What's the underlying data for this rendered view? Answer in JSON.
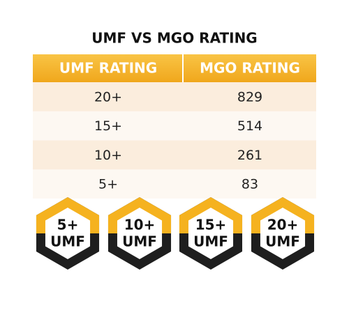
{
  "title": "UMF VS MGO RATING",
  "table": {
    "header": [
      "UMF RATING",
      "MGO RATING"
    ],
    "rows": [
      [
        "20+",
        829
      ],
      [
        "15+",
        514
      ],
      [
        "10+",
        261
      ],
      [
        "5+",
        83
      ]
    ]
  },
  "badges": [
    {
      "rating": "5+",
      "label": "UMF"
    },
    {
      "rating": "10+",
      "label": "UMF"
    },
    {
      "rating": "15+",
      "label": "UMF"
    },
    {
      "rating": "20+",
      "label": "UMF"
    }
  ]
}
